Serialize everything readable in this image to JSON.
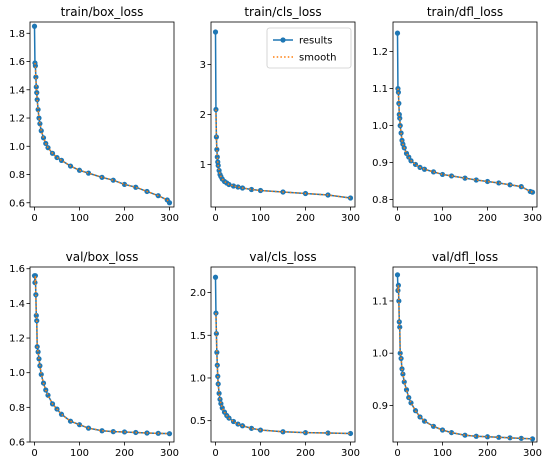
{
  "colors": {
    "results": "#1f77b4",
    "smooth": "#ff7f0e"
  },
  "legend": {
    "results": "results",
    "smooth": "smooth",
    "placement": "upper right of train/cls_loss"
  },
  "chart_data": [
    {
      "type": "line",
      "title": "train/box_loss",
      "xlim": [
        -10,
        310
      ],
      "ylim": [
        0.57,
        1.88
      ],
      "xticks": [
        0,
        100,
        200,
        300
      ],
      "yticks": [
        0.6,
        0.8,
        1.0,
        1.2,
        1.4,
        1.6,
        1.8
      ],
      "ytick_labels": [
        "0.6",
        "0.8",
        "1.0",
        "1.2",
        "1.4",
        "1.6",
        "1.8"
      ],
      "series": [
        {
          "name": "results",
          "x": [
            0,
            1,
            2,
            3,
            4,
            5,
            6,
            8,
            10,
            12,
            15,
            20,
            25,
            30,
            40,
            50,
            60,
            80,
            100,
            120,
            150,
            175,
            200,
            225,
            250,
            275,
            295,
            300
          ],
          "values": [
            1.85,
            1.59,
            1.57,
            1.49,
            1.42,
            1.38,
            1.33,
            1.26,
            1.2,
            1.16,
            1.11,
            1.06,
            1.02,
            0.99,
            0.95,
            0.92,
            0.9,
            0.86,
            0.83,
            0.81,
            0.78,
            0.76,
            0.73,
            0.71,
            0.68,
            0.65,
            0.62,
            0.6
          ]
        },
        {
          "name": "smooth"
        }
      ]
    },
    {
      "type": "line",
      "title": "train/cls_loss",
      "xlim": [
        -10,
        310
      ],
      "ylim": [
        0.15,
        3.85
      ],
      "xticks": [
        0,
        100,
        200,
        300
      ],
      "yticks": [
        1,
        2,
        3
      ],
      "ytick_labels": [
        "1",
        "2",
        "3"
      ],
      "series": [
        {
          "name": "results",
          "x": [
            0,
            1,
            2,
            3,
            4,
            5,
            6,
            8,
            10,
            12,
            15,
            20,
            25,
            30,
            40,
            50,
            60,
            80,
            100,
            150,
            200,
            250,
            300
          ],
          "values": [
            3.65,
            2.1,
            1.55,
            1.3,
            1.15,
            1.05,
            0.98,
            0.88,
            0.8,
            0.76,
            0.71,
            0.66,
            0.63,
            0.6,
            0.57,
            0.55,
            0.53,
            0.5,
            0.48,
            0.45,
            0.42,
            0.39,
            0.33
          ]
        },
        {
          "name": "smooth"
        }
      ]
    },
    {
      "type": "line",
      "title": "train/dfl_loss",
      "xlim": [
        -10,
        310
      ],
      "ylim": [
        0.78,
        1.28
      ],
      "xticks": [
        0,
        100,
        200,
        300
      ],
      "yticks": [
        0.8,
        0.9,
        1.0,
        1.1,
        1.2
      ],
      "ytick_labels": [
        "0.8",
        "0.9",
        "1.0",
        "1.1",
        "1.2"
      ],
      "series": [
        {
          "name": "results",
          "x": [
            0,
            1,
            2,
            3,
            4,
            5,
            6,
            8,
            10,
            12,
            15,
            20,
            25,
            30,
            40,
            50,
            60,
            80,
            100,
            120,
            150,
            175,
            200,
            225,
            250,
            275,
            295,
            300
          ],
          "values": [
            1.25,
            1.1,
            1.09,
            1.06,
            1.03,
            1.02,
            1.0,
            0.98,
            0.96,
            0.95,
            0.94,
            0.925,
            0.915,
            0.905,
            0.895,
            0.887,
            0.882,
            0.875,
            0.868,
            0.864,
            0.858,
            0.853,
            0.849,
            0.845,
            0.84,
            0.835,
            0.822,
            0.82
          ]
        },
        {
          "name": "smooth"
        }
      ]
    },
    {
      "type": "line",
      "title": "val/box_loss",
      "xlim": [
        -10,
        310
      ],
      "ylim": [
        0.6,
        1.61
      ],
      "xticks": [
        0,
        100,
        200,
        300
      ],
      "yticks": [
        0.6,
        0.8,
        1.0,
        1.2,
        1.4,
        1.6
      ],
      "ytick_labels": [
        "0.6",
        "0.8",
        "1.0",
        "1.2",
        "1.4",
        "1.6"
      ],
      "series": [
        {
          "name": "results",
          "x": [
            0,
            1,
            2,
            3,
            4,
            5,
            6,
            8,
            10,
            12,
            15,
            20,
            25,
            30,
            40,
            50,
            60,
            80,
            100,
            120,
            150,
            175,
            200,
            225,
            250,
            275,
            300
          ],
          "values": [
            1.56,
            1.52,
            1.56,
            1.45,
            1.33,
            1.3,
            1.15,
            1.12,
            1.08,
            1.04,
            0.99,
            0.94,
            0.9,
            0.87,
            0.82,
            0.79,
            0.76,
            0.72,
            0.7,
            0.68,
            0.665,
            0.66,
            0.658,
            0.655,
            0.652,
            0.65,
            0.648
          ]
        },
        {
          "name": "smooth"
        }
      ]
    },
    {
      "type": "line",
      "title": "val/cls_loss",
      "xlim": [
        -10,
        310
      ],
      "ylim": [
        0.25,
        2.3
      ],
      "xticks": [
        0,
        100,
        200,
        300
      ],
      "yticks": [
        0.5,
        1.0,
        1.5,
        2.0
      ],
      "ytick_labels": [
        "0.5",
        "1.0",
        "1.5",
        "2.0"
      ],
      "series": [
        {
          "name": "results",
          "x": [
            0,
            1,
            2,
            3,
            4,
            5,
            6,
            8,
            10,
            12,
            15,
            20,
            25,
            30,
            40,
            50,
            60,
            80,
            100,
            150,
            200,
            250,
            300
          ],
          "values": [
            2.18,
            1.76,
            1.52,
            1.3,
            1.15,
            1.02,
            0.93,
            0.82,
            0.75,
            0.7,
            0.65,
            0.6,
            0.56,
            0.53,
            0.49,
            0.46,
            0.44,
            0.41,
            0.39,
            0.37,
            0.36,
            0.355,
            0.35
          ]
        },
        {
          "name": "smooth"
        }
      ]
    },
    {
      "type": "line",
      "title": "val/dfl_loss",
      "xlim": [
        -10,
        310
      ],
      "ylim": [
        0.83,
        1.165
      ],
      "xticks": [
        0,
        100,
        200,
        300
      ],
      "yticks": [
        0.9,
        1.0,
        1.1
      ],
      "ytick_labels": [
        "0.9",
        "1.0",
        "1.1"
      ],
      "series": [
        {
          "name": "results",
          "x": [
            0,
            1,
            2,
            3,
            4,
            5,
            6,
            8,
            10,
            12,
            15,
            20,
            25,
            30,
            40,
            50,
            60,
            80,
            100,
            120,
            150,
            175,
            200,
            225,
            250,
            275,
            300
          ],
          "values": [
            1.15,
            1.12,
            1.13,
            1.1,
            1.06,
            1.05,
            1.0,
            0.99,
            0.97,
            0.96,
            0.945,
            0.93,
            0.915,
            0.905,
            0.89,
            0.878,
            0.87,
            0.86,
            0.853,
            0.848,
            0.843,
            0.841,
            0.84,
            0.839,
            0.838,
            0.837,
            0.836
          ]
        },
        {
          "name": "smooth"
        }
      ]
    }
  ]
}
